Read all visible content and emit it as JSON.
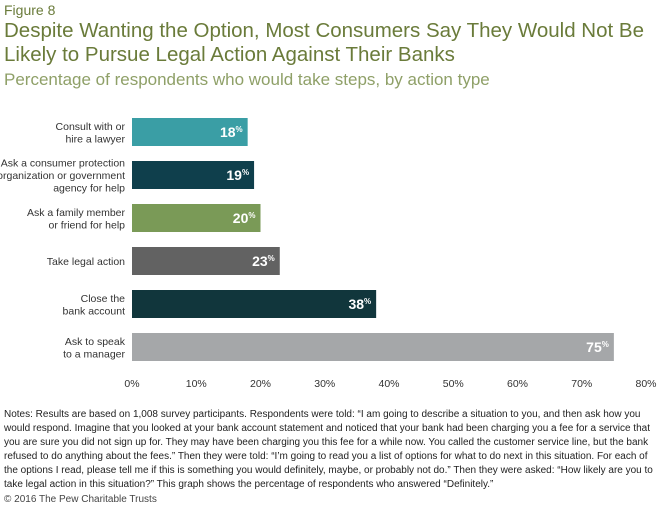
{
  "figure_label": "Figure 8",
  "title": "Despite Wanting the Option, Most Consumers Say They Would Not Be Likely to Pursue Legal Action Against Their Banks",
  "subtitle": "Percentage of respondents who would take steps, by action type",
  "notes": "Notes: Results are based on 1,008 survey participants. Respondents were told: “I am going to describe a situation to you, and then ask how you would respond. Imagine that you looked at your bank account statement and noticed that your bank had been charging you a fee for a service that you are sure you did not sign up for. They may have been charging you this fee for a while now. You called the customer service line, but the bank refused to do anything about the fees.” Then they were told: “I’m going to read you a list of options for what to do next in this situation. For each of the options I read, please tell me if this is something you would definitely, maybe, or probably not do.” Then they were asked: “How likely are you to take legal action in this situation?” This graph shows the percentage of respondents who answered “Definitely.”",
  "copyright": "© 2016 The Pew Charitable Trusts",
  "chart_data": {
    "type": "bar",
    "orientation": "horizontal",
    "categories": [
      [
        "Consult with or",
        "hire a lawyer"
      ],
      [
        "Ask a consumer protection",
        "organization or government",
        "agency for help"
      ],
      [
        "Ask a family member",
        "or friend for help"
      ],
      [
        "Take legal action"
      ],
      [
        "Close the",
        "bank account"
      ],
      [
        "Ask to speak",
        "to a manager"
      ]
    ],
    "values": [
      18,
      19,
      20,
      23,
      38,
      75
    ],
    "colors": [
      "#3a9ea5",
      "#0f3f4c",
      "#7a9a57",
      "#626262",
      "#11363c",
      "#a5a7a9"
    ],
    "xlim": [
      0,
      80
    ],
    "xticks": [
      0,
      10,
      20,
      30,
      40,
      50,
      60,
      70,
      80
    ],
    "tick_suffix": "%",
    "value_suffix": "%",
    "grid": false,
    "legend": "none"
  }
}
